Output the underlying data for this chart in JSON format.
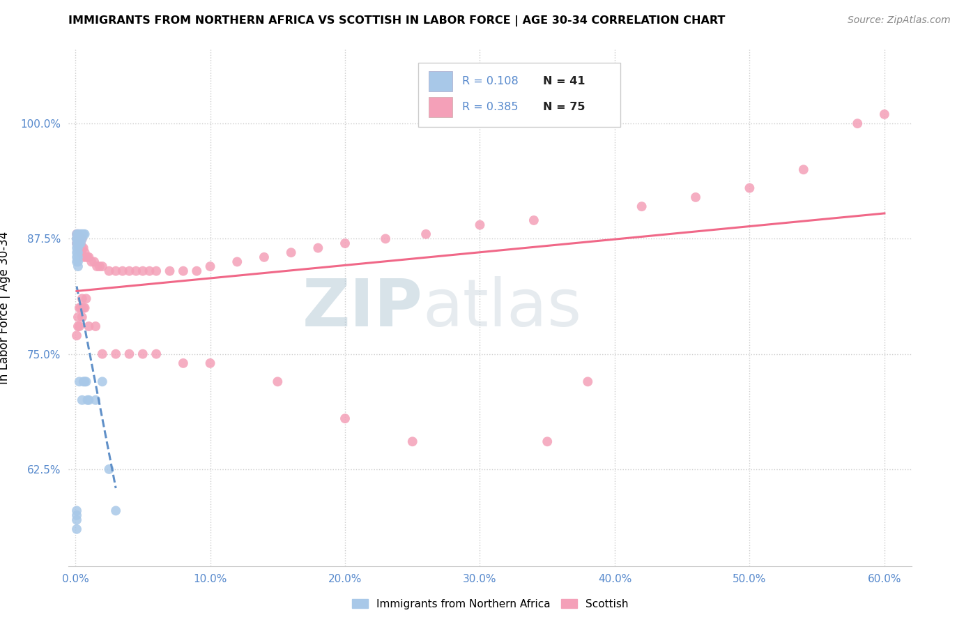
{
  "title": "IMMIGRANTS FROM NORTHERN AFRICA VS SCOTTISH IN LABOR FORCE | AGE 30-34 CORRELATION CHART",
  "source": "Source: ZipAtlas.com",
  "ylabel": "In Labor Force | Age 30-34",
  "xlim": [
    -0.005,
    0.62
  ],
  "ylim": [
    0.52,
    1.08
  ],
  "xtick_labels": [
    "0.0%",
    "10.0%",
    "20.0%",
    "30.0%",
    "40.0%",
    "50.0%",
    "60.0%"
  ],
  "xtick_values": [
    0.0,
    0.1,
    0.2,
    0.3,
    0.4,
    0.5,
    0.6
  ],
  "ytick_labels": [
    "62.5%",
    "75.0%",
    "87.5%",
    "100.0%"
  ],
  "ytick_values": [
    0.625,
    0.75,
    0.875,
    1.0
  ],
  "legend_blue_r": "R = 0.108",
  "legend_blue_n": "N = 41",
  "legend_pink_r": "R = 0.385",
  "legend_pink_n": "N = 75",
  "legend_label_blue": "Immigrants from Northern Africa",
  "legend_label_pink": "Scottish",
  "blue_color": "#a8c8e8",
  "pink_color": "#f4a0b8",
  "blue_line_color": "#6090c8",
  "pink_line_color": "#f06888",
  "watermark_zip": "ZIP",
  "watermark_atlas": "atlas",
  "watermark_color": "#c8d8e8",
  "blue_x": [
    0.001,
    0.001,
    0.001,
    0.001,
    0.001,
    0.001,
    0.001,
    0.001,
    0.002,
    0.002,
    0.002,
    0.002,
    0.002,
    0.002,
    0.002,
    0.002,
    0.003,
    0.003,
    0.003,
    0.003,
    0.004,
    0.004,
    0.004,
    0.005,
    0.005,
    0.005,
    0.006,
    0.006,
    0.007,
    0.007,
    0.008,
    0.009,
    0.01,
    0.015,
    0.02,
    0.025,
    0.03,
    0.001,
    0.001,
    0.001,
    0.001
  ],
  "blue_y": [
    0.88,
    0.875,
    0.875,
    0.87,
    0.865,
    0.86,
    0.855,
    0.85,
    0.88,
    0.875,
    0.87,
    0.865,
    0.86,
    0.855,
    0.85,
    0.845,
    0.88,
    0.875,
    0.87,
    0.72,
    0.88,
    0.875,
    0.87,
    0.88,
    0.875,
    0.7,
    0.88,
    0.72,
    0.88,
    0.72,
    0.72,
    0.7,
    0.7,
    0.7,
    0.72,
    0.625,
    0.58,
    0.56,
    0.57,
    0.575,
    0.58
  ],
  "pink_x": [
    0.001,
    0.001,
    0.001,
    0.002,
    0.002,
    0.002,
    0.003,
    0.003,
    0.004,
    0.004,
    0.005,
    0.005,
    0.006,
    0.006,
    0.007,
    0.008,
    0.009,
    0.01,
    0.012,
    0.014,
    0.016,
    0.018,
    0.02,
    0.025,
    0.03,
    0.035,
    0.04,
    0.045,
    0.05,
    0.055,
    0.06,
    0.07,
    0.08,
    0.09,
    0.1,
    0.12,
    0.14,
    0.16,
    0.18,
    0.2,
    0.23,
    0.26,
    0.3,
    0.34,
    0.38,
    0.42,
    0.46,
    0.5,
    0.54,
    0.58,
    0.001,
    0.002,
    0.002,
    0.003,
    0.003,
    0.004,
    0.005,
    0.005,
    0.006,
    0.007,
    0.008,
    0.01,
    0.015,
    0.02,
    0.03,
    0.04,
    0.05,
    0.06,
    0.08,
    0.1,
    0.15,
    0.2,
    0.25,
    0.35,
    0.6
  ],
  "pink_y": [
    0.88,
    0.875,
    0.87,
    0.88,
    0.875,
    0.87,
    0.875,
    0.865,
    0.87,
    0.86,
    0.875,
    0.865,
    0.865,
    0.855,
    0.86,
    0.855,
    0.855,
    0.855,
    0.85,
    0.85,
    0.845,
    0.845,
    0.845,
    0.84,
    0.84,
    0.84,
    0.84,
    0.84,
    0.84,
    0.84,
    0.84,
    0.84,
    0.84,
    0.84,
    0.845,
    0.85,
    0.855,
    0.86,
    0.865,
    0.87,
    0.875,
    0.88,
    0.89,
    0.895,
    0.72,
    0.91,
    0.92,
    0.93,
    0.95,
    1.0,
    0.77,
    0.78,
    0.79,
    0.78,
    0.8,
    0.8,
    0.79,
    0.81,
    0.8,
    0.8,
    0.81,
    0.78,
    0.78,
    0.75,
    0.75,
    0.75,
    0.75,
    0.75,
    0.74,
    0.74,
    0.72,
    0.68,
    0.655,
    0.655,
    1.01
  ]
}
